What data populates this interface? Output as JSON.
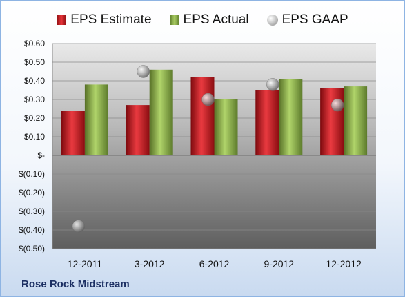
{
  "legend": {
    "estimate": "EPS Estimate",
    "actual": "EPS Actual",
    "gaap": "EPS GAAP"
  },
  "company": "Rose Rock Midstream",
  "colors": {
    "estimate": "#c8161d",
    "actual": "#8fb347",
    "gaap": "#b0b0b0",
    "company_text": "#1c2f63"
  },
  "chart_data": {
    "type": "bar",
    "categories": [
      "12-2011",
      "3-2012",
      "6-2012",
      "9-2012",
      "12-2012"
    ],
    "series": [
      {
        "name": "EPS Estimate",
        "values": [
          0.24,
          0.27,
          0.42,
          0.35,
          0.36
        ]
      },
      {
        "name": "EPS Actual",
        "values": [
          0.38,
          0.46,
          0.3,
          0.41,
          0.37
        ]
      },
      {
        "name": "EPS GAAP",
        "values": [
          -0.38,
          0.45,
          0.3,
          0.38,
          0.27
        ],
        "style": "marker"
      }
    ],
    "yticks": [
      0.6,
      0.5,
      0.4,
      0.3,
      0.2,
      0.1,
      0,
      -0.1,
      -0.2,
      -0.3,
      -0.4,
      -0.5
    ],
    "ytick_labels": [
      "$0.60",
      "$0.50",
      "$0.40",
      "$0.30",
      "$0.20",
      "$0.10",
      "$-",
      "$(0.10)",
      "$(0.20)",
      "$(0.30)",
      "$(0.40)",
      "$(0.50)"
    ],
    "ylim": [
      -0.5,
      0.6
    ],
    "grid": true,
    "legend_position": "top"
  }
}
